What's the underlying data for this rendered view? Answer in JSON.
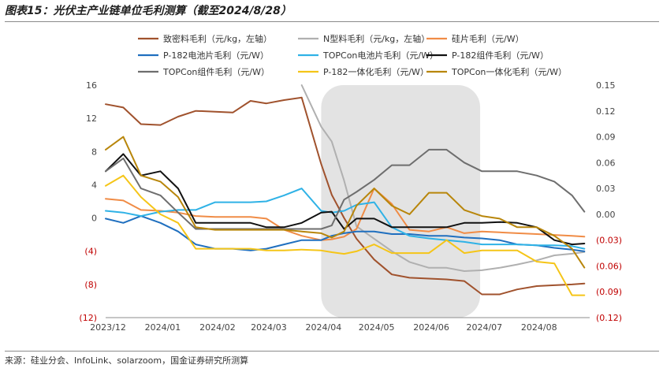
{
  "title": "图表15：光伏主产业链单位毛利测算（截至2024/8/28）",
  "source": "来源：硅业分会、InfoLink、solarzoom，国金证券研究所测算",
  "chart_data": {
    "type": "line",
    "x": [
      "2023-12-01",
      "2023-12-11",
      "2023-12-21",
      "2024-01-01",
      "2024-01-11",
      "2024-01-21",
      "2024-02-01",
      "2024-02-11",
      "2024-02-21",
      "2024-03-01",
      "2024-03-11",
      "2024-03-21",
      "2024-04-01",
      "2024-04-07",
      "2024-04-14",
      "2024-04-21",
      "2024-05-01",
      "2024-05-11",
      "2024-05-21",
      "2024-06-01",
      "2024-06-11",
      "2024-06-21",
      "2024-07-01",
      "2024-07-11",
      "2024-07-21",
      "2024-08-01",
      "2024-08-11",
      "2024-08-21",
      "2024-08-28"
    ],
    "x_tick_labels": [
      "2023/12",
      "2024/01",
      "2024/02",
      "2024/03",
      "2024/04",
      "2024/05",
      "2024/06",
      "2024/07",
      "2024/08"
    ],
    "x_tick_dates": [
      "2023-12-01",
      "2024-01-01",
      "2024-02-01",
      "2024-03-01",
      "2024-04-01",
      "2024-05-01",
      "2024-06-01",
      "2024-07-01",
      "2024-08-01"
    ],
    "y_left": {
      "range": [
        -12,
        16
      ],
      "ticks": [
        16,
        12,
        8,
        4,
        0,
        -4,
        -8,
        -12
      ],
      "tick_labels": [
        "16",
        "12",
        "8",
        "4",
        "0",
        "(4)",
        "(8)",
        "(12)"
      ]
    },
    "y_right": {
      "range": [
        -0.12,
        0.15
      ],
      "ticks": [
        0.15,
        0.12,
        0.09,
        0.06,
        0.03,
        0.0,
        -0.03,
        -0.06,
        -0.09,
        -0.12
      ],
      "tick_labels": [
        "0.15",
        "0.12",
        "0.09",
        "0.06",
        "0.03",
        "0.00",
        "(0.03)",
        "(0.06)",
        "(0.09)",
        "(0.12)"
      ]
    },
    "legend_position": "top",
    "grid": false,
    "shaded_period": {
      "start": "2024-04-01",
      "end": "2024-06-30",
      "color": "#d9d9d9"
    },
    "series": [
      {
        "name": "致密料毛利（元/kg，左轴）",
        "axis": "left",
        "color": "#a0522d",
        "values": [
          13.7,
          13.3,
          11.3,
          11.2,
          12.2,
          12.9,
          12.8,
          12.7,
          14.1,
          13.8,
          14.2,
          14.5,
          6.5,
          2.8,
          0.0,
          -2.5,
          -5.0,
          -6.8,
          -7.2,
          -7.3,
          -7.4,
          -7.6,
          -9.2,
          -9.2,
          -8.6,
          -8.2,
          -8.1,
          -8.0,
          -7.9
        ]
      },
      {
        "name": "N型料毛利（元/kg，左轴）",
        "axis": "left",
        "color": "#b0b0b0",
        "values": [
          null,
          null,
          null,
          null,
          null,
          null,
          null,
          null,
          null,
          null,
          null,
          16.0,
          11.0,
          9.2,
          4.5,
          -1.0,
          -2.5,
          -4.0,
          -5.3,
          -6.0,
          -6.0,
          -6.4,
          -6.3,
          -6.0,
          -5.6,
          -5.1,
          -4.5,
          -4.3,
          -4.1
        ]
      },
      {
        "name": "硅片毛利（元/W）",
        "axis": "right",
        "color": "#f08c46",
        "values": [
          0.018,
          0.016,
          0.005,
          0.004,
          0.002,
          -0.002,
          -0.003,
          -0.003,
          -0.003,
          -0.005,
          -0.018,
          -0.025,
          -0.03,
          -0.029,
          -0.026,
          -0.017,
          0.03,
          0.012,
          -0.018,
          -0.02,
          -0.015,
          -0.022,
          -0.02,
          -0.021,
          -0.022,
          -0.023,
          -0.024,
          -0.025,
          -0.026
        ]
      },
      {
        "name": "P-182电池片毛利（元/W）",
        "axis": "right",
        "color": "#1f6fbf",
        "values": [
          -0.005,
          -0.01,
          -0.002,
          -0.01,
          -0.02,
          -0.035,
          -0.04,
          -0.04,
          -0.042,
          -0.04,
          -0.035,
          -0.03,
          -0.03,
          -0.025,
          -0.022,
          -0.02,
          -0.02,
          -0.023,
          -0.023,
          -0.025,
          -0.025,
          -0.027,
          -0.028,
          -0.03,
          -0.035,
          -0.036,
          -0.039,
          -0.041,
          -0.043
        ]
      },
      {
        "name": "TOPCon电池片毛利（元/W）",
        "axis": "right",
        "color": "#2fb2e6",
        "values": [
          0.004,
          0.002,
          -0.002,
          0.003,
          0.005,
          0.005,
          0.014,
          0.014,
          0.014,
          0.015,
          0.022,
          0.03,
          0.004,
          0.002,
          0.004,
          0.011,
          0.014,
          -0.015,
          -0.025,
          -0.028,
          -0.03,
          -0.032,
          -0.035,
          -0.035,
          -0.035,
          -0.036,
          -0.036,
          -0.037,
          -0.04
        ]
      },
      {
        "name": "P-182组件毛利（元/W）",
        "axis": "right",
        "color": "#111111",
        "values": [
          0.05,
          0.07,
          0.045,
          0.05,
          0.03,
          -0.01,
          -0.01,
          -0.01,
          -0.01,
          -0.015,
          -0.015,
          -0.01,
          0.002,
          0.003,
          -0.017,
          -0.005,
          -0.005,
          -0.015,
          -0.015,
          -0.015,
          -0.015,
          -0.01,
          -0.01,
          -0.009,
          -0.01,
          -0.015,
          -0.03,
          -0.035,
          -0.034
        ]
      },
      {
        "name": "TOPCon组件毛利（元/W）",
        "axis": "right",
        "color": "#6e6e6e",
        "values": [
          0.05,
          0.065,
          0.03,
          0.022,
          0.002,
          -0.017,
          -0.017,
          -0.017,
          -0.017,
          -0.017,
          -0.017,
          -0.017,
          -0.017,
          -0.013,
          0.017,
          0.026,
          0.04,
          0.057,
          0.057,
          0.075,
          0.075,
          0.06,
          0.05,
          0.05,
          0.05,
          0.045,
          0.038,
          0.022,
          0.003
        ]
      },
      {
        "name": "P-182一体化毛利（元/W）",
        "axis": "right",
        "color": "#f5c518",
        "values": [
          0.033,
          0.045,
          0.02,
          0.0,
          -0.01,
          -0.04,
          -0.04,
          -0.04,
          -0.04,
          -0.042,
          -0.042,
          -0.041,
          -0.042,
          -0.044,
          -0.046,
          -0.043,
          -0.035,
          -0.045,
          -0.045,
          -0.045,
          -0.03,
          -0.045,
          -0.042,
          -0.042,
          -0.042,
          -0.055,
          -0.057,
          -0.094,
          -0.094
        ]
      },
      {
        "name": "TOPCon一体化毛利（元/W）",
        "axis": "right",
        "color": "#b8860b",
        "values": [
          0.075,
          0.09,
          0.045,
          0.038,
          0.02,
          -0.015,
          -0.018,
          -0.018,
          -0.018,
          -0.018,
          -0.018,
          -0.02,
          -0.022,
          -0.027,
          -0.02,
          0.01,
          0.03,
          0.01,
          0.0,
          0.025,
          0.025,
          0.005,
          -0.002,
          -0.005,
          -0.015,
          -0.015,
          -0.025,
          -0.04,
          -0.062
        ]
      }
    ]
  }
}
